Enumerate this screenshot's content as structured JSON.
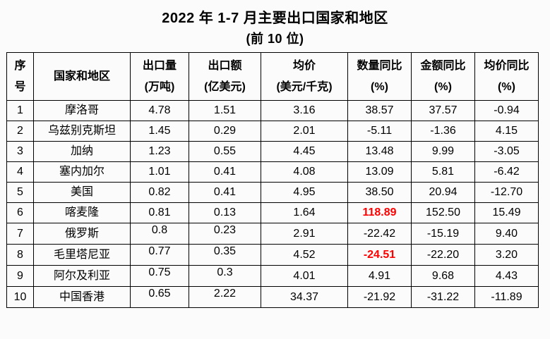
{
  "colors": {
    "highlight_red": "#FF0000",
    "border": "#000000",
    "background": "#FBFBFB",
    "text": "#000000"
  },
  "chart_data": {
    "type": "table",
    "title": "2022 年 1-7 月主要出口国家和地区",
    "subtitle": "(前 10 位)",
    "columns": [
      {
        "id": "rank",
        "lines": [
          "序",
          "号"
        ]
      },
      {
        "id": "country",
        "lines": [
          "国家和地区"
        ]
      },
      {
        "id": "qty",
        "lines": [
          "出口量",
          "(万吨)"
        ]
      },
      {
        "id": "amount",
        "lines": [
          "出口额",
          "(亿美元)"
        ]
      },
      {
        "id": "avg_price",
        "lines": [
          "均价",
          "(美元/千克)"
        ]
      },
      {
        "id": "qty_yoy",
        "lines": [
          "数量同比",
          "(%)"
        ]
      },
      {
        "id": "amount_yoy",
        "lines": [
          "金额同比",
          "(%)"
        ]
      },
      {
        "id": "price_yoy",
        "lines": [
          "均价同比",
          "(%)"
        ]
      }
    ],
    "rows": [
      {
        "rank": "1",
        "country": "摩洛哥",
        "qty": "4.78",
        "amount": "1.51",
        "avg_price": "3.16",
        "qty_yoy": "38.57",
        "amount_yoy": "37.57",
        "price_yoy": "-0.94"
      },
      {
        "rank": "2",
        "country": "乌兹别克斯坦",
        "qty": "1.45",
        "amount": "0.29",
        "avg_price": "2.01",
        "qty_yoy": "-5.11",
        "amount_yoy": "-1.36",
        "price_yoy": "4.15"
      },
      {
        "rank": "3",
        "country": "加纳",
        "qty": "1.23",
        "amount": "0.55",
        "avg_price": "4.45",
        "qty_yoy": "13.48",
        "amount_yoy": "9.99",
        "price_yoy": "-3.05"
      },
      {
        "rank": "4",
        "country": "塞内加尔",
        "qty": "1.01",
        "amount": "0.41",
        "avg_price": "4.08",
        "qty_yoy": "13.09",
        "amount_yoy": "5.81",
        "price_yoy": "-6.42"
      },
      {
        "rank": "5",
        "country": "美国",
        "qty": "0.82",
        "amount": "0.41",
        "avg_price": "4.95",
        "qty_yoy": "38.50",
        "amount_yoy": "20.94",
        "price_yoy": "-12.70"
      },
      {
        "rank": "6",
        "country": "喀麦隆",
        "qty": "0.81",
        "amount": "0.13",
        "avg_price": "1.64",
        "qty_yoy": "118.89",
        "amount_yoy": "152.50",
        "price_yoy": "15.49"
      },
      {
        "rank": "7",
        "country": "俄罗斯",
        "qty": "0.8",
        "amount": "0.23",
        "avg_price": "2.91",
        "qty_yoy": "-22.42",
        "amount_yoy": "-15.19",
        "price_yoy": "9.40"
      },
      {
        "rank": "8",
        "country": "毛里塔尼亚",
        "qty": "0.77",
        "amount": "0.35",
        "avg_price": "4.52",
        "qty_yoy": "-24.51",
        "amount_yoy": "-22.20",
        "price_yoy": "3.20"
      },
      {
        "rank": "9",
        "country": "阿尔及利亚",
        "qty": "0.75",
        "amount": "0.3",
        "avg_price": "4.01",
        "qty_yoy": "4.91",
        "amount_yoy": "9.68",
        "price_yoy": "4.43"
      },
      {
        "rank": "10",
        "country": "中国香港",
        "qty": "0.65",
        "amount": "2.22",
        "avg_price": "34.37",
        "qty_yoy": "-21.92",
        "amount_yoy": "-31.22",
        "price_yoy": "-11.89"
      }
    ],
    "red_cells": [
      {
        "row_rank": "6",
        "col": "qty_yoy"
      },
      {
        "row_rank": "8",
        "col": "qty_yoy"
      }
    ],
    "legend_position": "none",
    "grid": "full-borders"
  }
}
